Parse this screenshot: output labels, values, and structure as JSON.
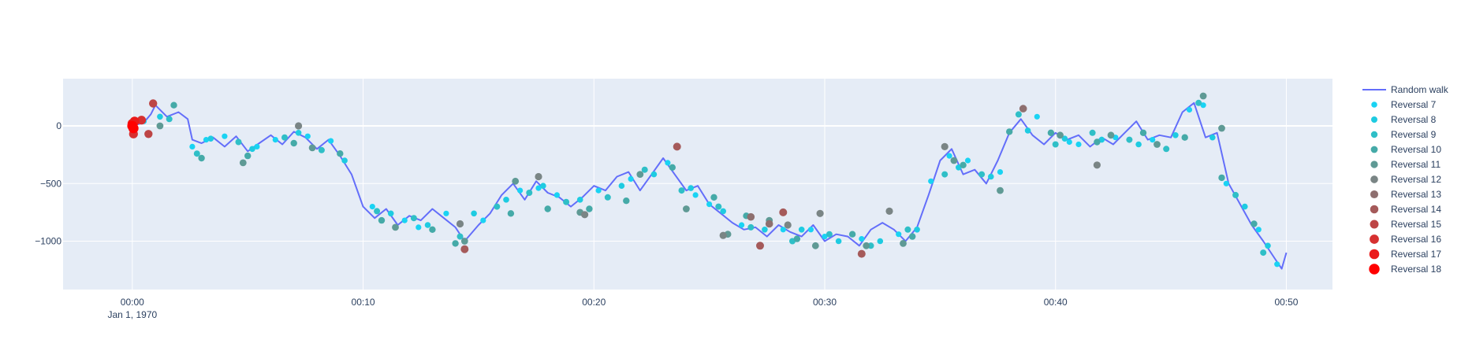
{
  "chart_data": {
    "type": "scatter",
    "title": "",
    "xlabel": "",
    "ylabel": "",
    "x_unit": "elapsed time (mm:ss) from 1970-01-01 00:00",
    "xlim": [
      "00:-03",
      "00:52"
    ],
    "ylim": [
      -1420,
      410
    ],
    "x_ticks": [
      {
        "label": "00:00",
        "sub": "Jan 1, 1970",
        "value": 0
      },
      {
        "label": "00:10",
        "value": 10
      },
      {
        "label": "00:20",
        "value": 20
      },
      {
        "label": "00:30",
        "value": 30
      },
      {
        "label": "00:40",
        "value": 40
      },
      {
        "label": "00:50",
        "value": 50
      }
    ],
    "y_ticks": [
      {
        "label": "0",
        "value": 0
      },
      {
        "label": "−500",
        "value": -500
      },
      {
        "label": "−1000",
        "value": -1000
      }
    ],
    "grid": true,
    "legend_position": "right",
    "plot_bg": "#e5ecf6",
    "line_series": {
      "name": "Random walk",
      "color": "#636efa",
      "x_minutes": [
        0,
        0.5,
        0.8,
        1.0,
        1.5,
        2.0,
        2.4,
        2.6,
        3.0,
        3.5,
        4.0,
        4.5,
        5.0,
        5.5,
        6.0,
        6.5,
        7.0,
        7.5,
        8.0,
        8.5,
        9.0,
        9.5,
        10.0,
        10.5,
        11.0,
        11.5,
        12.0,
        12.5,
        13.0,
        13.5,
        14.0,
        14.4,
        15.0,
        15.5,
        16.0,
        16.5,
        17.0,
        17.5,
        18.0,
        18.5,
        19.0,
        19.5,
        20.0,
        20.5,
        21.0,
        21.5,
        22.0,
        22.5,
        23.0,
        23.5,
        24.0,
        24.5,
        25.0,
        25.5,
        26.0,
        26.5,
        27.0,
        27.5,
        28.0,
        28.5,
        29.0,
        29.5,
        30.0,
        30.5,
        31.0,
        31.5,
        32.0,
        32.5,
        33.0,
        33.5,
        34.0,
        34.5,
        35.0,
        35.5,
        36.0,
        36.5,
        37.0,
        37.5,
        38.0,
        38.5,
        39.0,
        39.5,
        40.0,
        40.5,
        41.0,
        41.5,
        42.0,
        42.5,
        43.0,
        43.5,
        44.0,
        44.5,
        45.0,
        45.5,
        46.0,
        46.5,
        47.0,
        47.5,
        48.0,
        48.5,
        49.0,
        49.5,
        49.8,
        50.0
      ],
      "y": [
        0,
        30,
        100,
        180,
        80,
        120,
        60,
        -120,
        -150,
        -100,
        -180,
        -90,
        -220,
        -150,
        -80,
        -160,
        -50,
        -100,
        -200,
        -120,
        -260,
        -420,
        -700,
        -800,
        -720,
        -860,
        -780,
        -820,
        -720,
        -800,
        -880,
        -1000,
        -860,
        -760,
        -600,
        -500,
        -640,
        -480,
        -580,
        -620,
        -700,
        -620,
        -520,
        -560,
        -440,
        -400,
        -560,
        -420,
        -280,
        -420,
        -560,
        -520,
        -680,
        -760,
        -840,
        -900,
        -880,
        -960,
        -860,
        -920,
        -960,
        -860,
        -1000,
        -940,
        -960,
        -1040,
        -900,
        -840,
        -900,
        -1000,
        -880,
        -600,
        -300,
        -200,
        -420,
        -380,
        -500,
        -300,
        -60,
        60,
        -80,
        -160,
        -60,
        -120,
        -80,
        -180,
        -100,
        -160,
        -60,
        40,
        -120,
        -80,
        -100,
        120,
        200,
        -100,
        -60,
        -500,
        -680,
        -860,
        -1000,
        -1150,
        -1240,
        -1100
      ]
    },
    "series": [
      {
        "name": "Reversal 7",
        "color": "#19d3f3",
        "size": 3.6,
        "x_minutes": [
          0.5,
          2.6,
          4.0,
          6.2,
          8.6,
          10.4,
          11.8,
          13.6,
          15.2,
          16.8,
          18.4,
          20.2,
          21.6,
          23.2,
          25.0,
          26.4,
          28.2,
          30.0,
          31.6,
          33.2,
          34.6,
          36.2,
          37.6,
          39.2,
          41.0,
          42.6,
          44.2,
          45.8,
          47.4,
          48.8,
          49.6,
          3.2,
          5.4,
          7.6,
          12.4,
          17.6,
          24.4,
          29.4,
          35.4,
          40.6,
          46.4
        ],
        "y": [
          40,
          -180,
          -90,
          -120,
          -130,
          -700,
          -820,
          -760,
          -820,
          -560,
          -600,
          -560,
          -460,
          -320,
          -680,
          -860,
          -900,
          -960,
          -980,
          -940,
          -480,
          -300,
          -400,
          80,
          -160,
          -100,
          -120,
          140,
          -500,
          -900,
          -1200,
          -120,
          -180,
          -90,
          -880,
          -540,
          -600,
          -900,
          -260,
          -140,
          180
        ]
      },
      {
        "name": "Reversal 8",
        "color": "#1ecbe1",
        "size": 3.8,
        "x_minutes": [
          1.2,
          3.4,
          5.2,
          7.2,
          9.2,
          11.2,
          12.8,
          14.8,
          16.2,
          17.8,
          19.4,
          21.2,
          22.6,
          24.2,
          25.6,
          27.4,
          29.0,
          30.6,
          32.4,
          34.0,
          35.8,
          37.2,
          38.8,
          40.4,
          42.0,
          43.6,
          45.2,
          46.8,
          48.2,
          49.2
        ],
        "y": [
          80,
          -110,
          -200,
          -60,
          -300,
          -760,
          -860,
          -760,
          -640,
          -520,
          -640,
          -520,
          -420,
          -540,
          -740,
          -900,
          -900,
          -1000,
          -1000,
          -900,
          -360,
          -440,
          -40,
          -110,
          -120,
          -160,
          -80,
          -100,
          -700,
          -1040
        ]
      },
      {
        "name": "Reversal 9",
        "color": "#2fbfc7",
        "size": 4.0,
        "x_minutes": [
          1.6,
          2.8,
          4.6,
          6.6,
          8.2,
          10.6,
          12.2,
          14.2,
          15.8,
          17.2,
          18.8,
          20.6,
          22.2,
          23.8,
          25.4,
          26.8,
          28.6,
          30.2,
          32.0,
          33.6,
          35.2,
          36.8,
          38.4,
          40.0,
          41.6,
          43.2,
          44.8,
          46.2,
          47.8,
          49.0
        ],
        "y": [
          60,
          -240,
          -140,
          -100,
          -210,
          -740,
          -800,
          -960,
          -700,
          -580,
          -660,
          -620,
          -380,
          -560,
          -700,
          -880,
          -1000,
          -940,
          -1040,
          -900,
          -420,
          -420,
          100,
          -160,
          -60,
          -120,
          -200,
          200,
          -600,
          -1100
        ]
      },
      {
        "name": "Reversal 10",
        "color": "#45aaa8",
        "size": 4.2,
        "x_minutes": [
          1.8,
          3.0,
          5.0,
          7.0,
          9.0,
          10.8,
          13.0,
          14.0,
          16.4,
          18.0,
          19.8,
          21.4,
          23.4,
          25.2,
          26.6,
          28.8,
          31.2,
          33.8,
          36.0,
          38.0,
          39.8,
          41.8,
          43.8,
          45.6,
          47.2,
          48.6
        ],
        "y": [
          180,
          -280,
          -260,
          -150,
          -240,
          -820,
          -900,
          -1020,
          -760,
          -720,
          -720,
          -650,
          -360,
          -620,
          -780,
          -980,
          -940,
          -960,
          -340,
          -50,
          -60,
          -140,
          -60,
          -100,
          -450,
          -850
        ]
      },
      {
        "name": "Reversal 11",
        "color": "#5f9a95",
        "size": 4.4,
        "x_minutes": [
          1.2,
          4.8,
          7.8,
          11.4,
          14.4,
          16.6,
          19.4,
          22.0,
          24.0,
          25.8,
          27.6,
          29.6,
          31.8,
          33.4,
          35.6,
          37.6,
          40.2,
          42.4,
          44.4,
          46.4,
          47.2
        ],
        "y": [
          0,
          -320,
          -190,
          -880,
          -1000,
          -480,
          -750,
          -420,
          -720,
          -940,
          -820,
          -1040,
          -1040,
          -1020,
          -300,
          -560,
          -80,
          -80,
          -160,
          260,
          -20
        ]
      },
      {
        "name": "Reversal 12",
        "color": "#7a8585",
        "size": 4.6,
        "x_minutes": [
          7.2,
          14.2,
          17.6,
          19.6,
          25.6,
          28.4,
          29.8,
          32.8,
          35.2,
          41.8
        ],
        "y": [
          0,
          -850,
          -440,
          -770,
          -950,
          -860,
          -760,
          -740,
          -180,
          -340
        ]
      },
      {
        "name": "Reversal 13",
        "color": "#8e6f6f",
        "size": 4.8,
        "x_minutes": [
          26.8,
          27.6,
          38.6
        ],
        "y": [
          -790,
          -850,
          150
        ]
      },
      {
        "name": "Reversal 14",
        "color": "#a55a5a",
        "size": 5.0,
        "x_minutes": [
          14.4,
          23.6,
          27.2,
          28.2,
          31.6
        ],
        "y": [
          -1070,
          -180,
          -1040,
          -750,
          -1110
        ]
      },
      {
        "name": "Reversal 15",
        "color": "#bd4545",
        "size": 5.2,
        "x_minutes": [
          0.9,
          0.7
        ],
        "y": [
          195,
          -70
        ]
      },
      {
        "name": "Reversal 16",
        "color": "#d63030",
        "size": 5.6,
        "x_minutes": [
          0.4,
          0.05
        ],
        "y": [
          50,
          -70
        ]
      },
      {
        "name": "Reversal 17",
        "color": "#ea1a1a",
        "size": 6.0,
        "x_minutes": [
          0.0,
          0.1
        ],
        "y": [
          20,
          40
        ]
      },
      {
        "name": "Reversal 18",
        "color": "#ff0000",
        "size": 6.4,
        "x_minutes": [
          0.0,
          0.05
        ],
        "y": [
          0,
          -20
        ]
      }
    ]
  }
}
